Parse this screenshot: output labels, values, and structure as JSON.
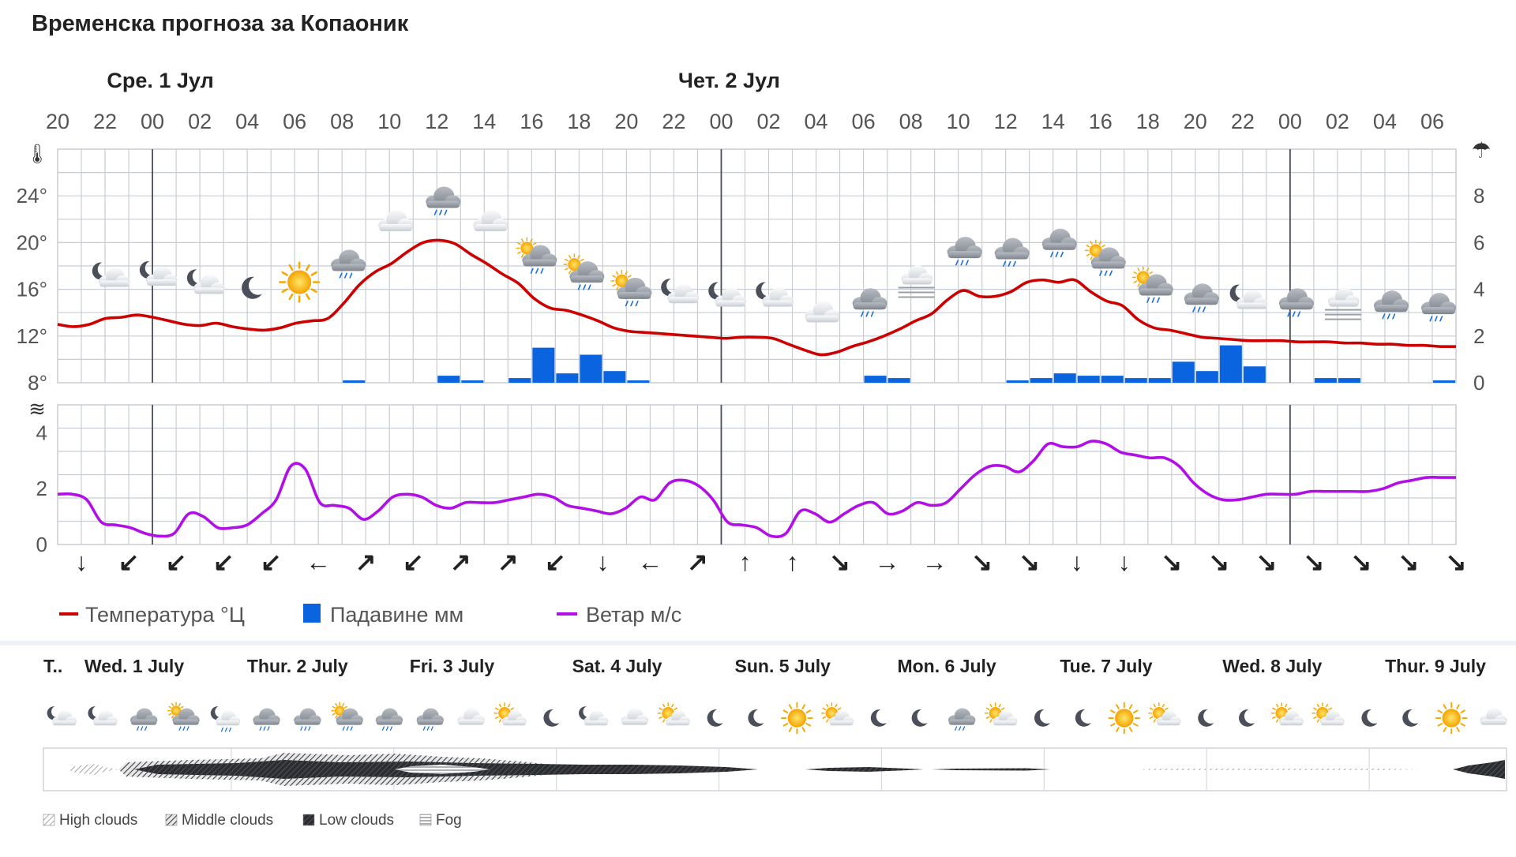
{
  "title": "Временска прогноза за Копаоник",
  "top_days": [
    {
      "label": "Сре. 1 Јул",
      "slot": 4
    },
    {
      "label": "Чет. 2 Јул",
      "slot": 28
    }
  ],
  "hours": [
    "20",
    "22",
    "00",
    "02",
    "04",
    "06",
    "08",
    "10",
    "12",
    "14",
    "16",
    "18",
    "20",
    "22",
    "00",
    "02",
    "04",
    "06",
    "08",
    "10",
    "12",
    "14",
    "16",
    "18",
    "20",
    "22",
    "00",
    "02",
    "04",
    "06"
  ],
  "temp_axis": {
    "ticks": [
      "24°",
      "20°",
      "16°",
      "12°",
      "8°"
    ],
    "ylim": [
      8,
      28
    ]
  },
  "precip_axis": {
    "ticks": [
      "8",
      "6",
      "4",
      "2",
      "0"
    ],
    "ylim": [
      0,
      10
    ]
  },
  "wind_axis": {
    "ticks": [
      "4",
      "2",
      "0"
    ],
    "ylim": [
      0,
      5
    ]
  },
  "legend": {
    "temp": "Температура °Ц",
    "precip": "Падавине мм",
    "wind": "Ветар м/с"
  },
  "colors": {
    "temp": "#cc0000",
    "precip": "#0a64e0",
    "wind": "#b20ee6",
    "grid": "#c8cdd4",
    "axis_text": "#555555"
  },
  "chart_data": [
    {
      "type": "line",
      "series": [
        {
          "name": "Температура °Ц",
          "unit": "°C",
          "values": [
            13,
            12.8,
            13,
            13.5,
            13.6,
            13.8,
            13.6,
            13.3,
            13,
            12.9,
            13.1,
            12.8,
            12.6,
            12.5,
            12.7,
            13.1,
            13.3,
            13.5,
            14.8,
            16.4,
            17.5,
            18.2,
            19.2,
            20.0,
            20.2,
            19.9,
            19.0,
            18.2,
            17.3,
            16.5,
            15.2,
            14.4,
            14.2,
            13.8,
            13.3,
            12.7,
            12.4,
            12.3,
            12.2,
            12.1,
            12.0,
            11.9,
            11.8,
            11.9,
            11.9,
            11.8,
            11.3,
            10.8,
            10.4,
            10.6,
            11.1,
            11.5,
            12.0,
            12.6,
            13.3,
            13.9,
            15.1,
            15.9,
            15.4,
            15.4,
            15.8,
            16.6,
            16.8,
            16.6,
            16.8,
            15.8,
            15.0,
            14.6,
            13.4,
            12.7,
            12.5,
            12.2,
            11.9,
            11.8,
            11.7,
            11.6,
            11.6,
            11.6,
            11.5,
            11.5,
            11.5,
            11.4,
            11.4,
            11.3,
            11.3,
            11.2,
            11.2,
            11.1,
            11.1
          ]
        }
      ],
      "x_start": "20:00",
      "x_step_hours": 1,
      "ylim": [
        8,
        28
      ]
    },
    {
      "type": "bar",
      "series": [
        {
          "name": "Падавине мм",
          "unit": "mm",
          "values": [
            0,
            0,
            0,
            0,
            0,
            0,
            0,
            0,
            0,
            0,
            0,
            0,
            0,
            0,
            0,
            0,
            0,
            0,
            0,
            0,
            0,
            0,
            0,
            0,
            0,
            0,
            0.1,
            0,
            0,
            0,
            0,
            0,
            0,
            0,
            0,
            0,
            0,
            0.3,
            0.1,
            0,
            0,
            0.2,
            0,
            1.5,
            0.4,
            1.2,
            0.5,
            0.1,
            0,
            0,
            0,
            0,
            0,
            0,
            0,
            0,
            0,
            0,
            0,
            0,
            0,
            0,
            0,
            0,
            0,
            0,
            0,
            0,
            0,
            0,
            0,
            0,
            0,
            0,
            0,
            0,
            0,
            0,
            0,
            0,
            0,
            0,
            0,
            0,
            0,
            0,
            0,
            0,
            0,
            0,
            0,
            0,
            0,
            0,
            0,
            0,
            0,
            0,
            0,
            0,
            0,
            0,
            0,
            0,
            0,
            0,
            0,
            0,
            0,
            0
          ]
        }
      ],
      "bar_values": [
        0,
        0,
        0,
        0,
        0,
        0,
        0,
        0,
        0,
        0,
        0,
        0,
        0.1,
        0,
        0,
        0,
        0.3,
        0.1,
        0,
        0.2,
        1.5,
        0.4,
        1.2,
        0.5,
        0.1,
        0,
        0,
        0,
        0,
        0,
        0,
        0,
        0,
        0,
        0.3,
        0.2,
        0,
        0,
        0,
        0,
        0.1,
        0.2,
        0.4,
        0.3,
        0.3,
        0.2,
        0.2,
        0.9,
        0.5,
        1.6,
        0.7,
        0,
        0,
        0.2,
        0.2,
        0,
        0,
        0,
        0.1,
        0.2,
        0.3,
        0.1,
        0.2
      ],
      "ylim": [
        0,
        10
      ]
    },
    {
      "type": "line",
      "series": [
        {
          "name": "Ветар м/с",
          "unit": "m/s",
          "values": [
            1.8,
            1.8,
            1.6,
            0.8,
            0.7,
            0.6,
            0.4,
            0.3,
            0.4,
            1.1,
            1.0,
            0.6,
            0.6,
            0.7,
            1.1,
            1.6,
            2.8,
            2.7,
            1.5,
            1.4,
            1.3,
            0.9,
            1.2,
            1.7,
            1.8,
            1.7,
            1.4,
            1.3,
            1.5,
            1.5,
            1.5,
            1.6,
            1.7,
            1.8,
            1.7,
            1.4,
            1.3,
            1.2,
            1.1,
            1.3,
            1.7,
            1.6,
            2.2,
            2.3,
            2.1,
            1.6,
            0.8,
            0.7,
            0.6,
            0.3,
            0.4,
            1.2,
            1.1,
            0.8,
            1.1,
            1.4,
            1.5,
            1.1,
            1.2,
            1.5,
            1.4,
            1.5,
            2.0,
            2.5,
            2.8,
            2.8,
            2.6,
            3.0,
            3.6,
            3.5,
            3.5,
            3.7,
            3.6,
            3.3,
            3.2,
            3.1,
            3.1,
            2.8,
            2.2,
            1.8,
            1.6,
            1.6,
            1.7,
            1.8,
            1.8,
            1.8,
            1.9,
            1.9,
            1.9,
            1.9,
            1.9,
            2.0,
            2.2,
            2.3,
            2.4,
            2.4,
            2.4
          ]
        }
      ],
      "ylim": [
        0,
        5
      ]
    }
  ],
  "wind_dirs": [
    "↓",
    "↙",
    "↙",
    "↙",
    "↙",
    "←",
    "↗",
    "↙",
    "↗",
    "↗",
    "↙",
    "↓",
    "←",
    "↗",
    "↑",
    "↑",
    "↘",
    "→",
    "→",
    "↘",
    "↘",
    "↓",
    "↓",
    "↘",
    "↘",
    "↘",
    "↘",
    "↘",
    "↘",
    "↘"
  ],
  "top_icons": [
    {
      "icon": "cloud-moon-icon",
      "slot": 2
    },
    {
      "icon": "cloud-moon-icon",
      "slot": 4
    },
    {
      "icon": "cloud-moon-icon",
      "slot": 6
    },
    {
      "icon": "moon-icon",
      "slot": 8
    },
    {
      "icon": "sun-icon",
      "slot": 10
    },
    {
      "icon": "cloud-rain-icon",
      "slot": 12
    },
    {
      "icon": "cloud-icon",
      "slot": 14
    },
    {
      "icon": "cloud-rain-icon",
      "slot": 16
    },
    {
      "icon": "cloud-icon",
      "slot": 18
    },
    {
      "icon": "sun-cloud-rain-icon",
      "slot": 20
    },
    {
      "icon": "sun-cloud-rain-icon",
      "slot": 22
    },
    {
      "icon": "sun-cloud-rain-icon",
      "slot": 24
    },
    {
      "icon": "cloud-moon-icon",
      "slot": 26
    },
    {
      "icon": "cloud-moon-icon",
      "slot": 28
    },
    {
      "icon": "cloud-moon-icon",
      "slot": 30
    },
    {
      "icon": "cloud-icon",
      "slot": 32
    },
    {
      "icon": "cloud-rain-icon",
      "slot": 34
    },
    {
      "icon": "fog-icon",
      "slot": 36
    },
    {
      "icon": "cloud-rain-icon",
      "slot": 38
    },
    {
      "icon": "cloud-rain-icon",
      "slot": 40
    },
    {
      "icon": "cloud-rain-icon",
      "slot": 42
    },
    {
      "icon": "sun-cloud-rain-icon",
      "slot": 44
    },
    {
      "icon": "sun-cloud-rain-icon",
      "slot": 46
    },
    {
      "icon": "cloud-rain-icon",
      "slot": 48
    },
    {
      "icon": "cloud-moon-icon",
      "slot": 50
    },
    {
      "icon": "cloud-rain-icon",
      "slot": 52
    },
    {
      "icon": "fog-icon",
      "slot": 54
    },
    {
      "icon": "cloud-rain-icon",
      "slot": 56
    },
    {
      "icon": "cloud-rain-icon",
      "slot": 58
    }
  ],
  "bottom": {
    "days": [
      "T..",
      "Wed. 1 July",
      "Thur. 2 July",
      "Fri. 3 July",
      "Sat. 4 July",
      "Sun. 5 July",
      "Mon. 6 July",
      "Tue. 7 July",
      "Wed. 8 July",
      "Thur. 9 July"
    ],
    "icons": [
      "cloud-moon-icon",
      "cloud-moon-icon",
      "cloud-rain-icon",
      "sun-cloud-rain-icon",
      "cloud-moon-rain-icon",
      "cloud-rain-icon",
      "cloud-rain-icon",
      "sun-cloud-rain-icon",
      "cloud-rain-icon",
      "cloud-rain-icon",
      "cloud-icon",
      "sun-cloud-icon",
      "moon-icon",
      "cloud-moon-icon",
      "cloud-icon",
      "sun-cloud-icon",
      "moon-icon",
      "moon-icon",
      "sun-icon",
      "sun-cloud-icon",
      "moon-icon",
      "moon-icon",
      "cloud-rain-icon",
      "sun-cloud-icon",
      "moon-icon",
      "moon-icon",
      "sun-icon",
      "sun-cloud-icon",
      "moon-icon",
      "moon-icon",
      "sun-cloud-icon",
      "sun-cloud-icon",
      "moon-icon",
      "moon-icon",
      "sun-icon",
      "cloud-icon"
    ],
    "legend": [
      "High clouds",
      "Middle clouds",
      "Low clouds",
      "Fog"
    ]
  }
}
